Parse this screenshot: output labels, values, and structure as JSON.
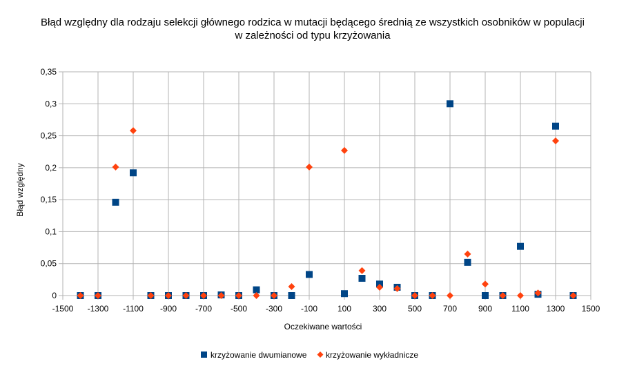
{
  "chart_data": {
    "type": "scatter",
    "title_lines": [
      "Błąd względny dla  rodzaju selekcji głównego rodzica w mutacji będącego średnią ze wszystkich osobników w populacji",
      "w zależności od typu krzyżowania"
    ],
    "xlabel": "Oczekiwane wartości",
    "ylabel": "Błąd względny",
    "xlim": [
      -1500,
      1500
    ],
    "ylim": [
      0,
      0.35
    ],
    "x_ticks": [
      -1500,
      -1300,
      -1100,
      -900,
      -700,
      -500,
      -300,
      -100,
      100,
      300,
      500,
      700,
      900,
      1100,
      1300,
      1500
    ],
    "x_tick_labels": [
      "-1500",
      "-1300",
      "-1100",
      "-900",
      "-700",
      "-500",
      "-300",
      "-100",
      "100",
      "300",
      "500",
      "700",
      "900",
      "1100",
      "1300",
      "1500"
    ],
    "y_ticks": [
      0,
      0.05,
      0.1,
      0.15,
      0.2,
      0.25,
      0.3,
      0.35
    ],
    "y_tick_labels": [
      "0",
      "0,05",
      "0,1",
      "0,15",
      "0,2",
      "0,25",
      "0,3",
      "0,35"
    ],
    "grid": true,
    "legend_position": "bottom",
    "series": [
      {
        "name": "krzyżowanie dwumianowe",
        "marker": "square",
        "color": "#004586",
        "points": [
          [
            -1400,
            0
          ],
          [
            -1300,
            0
          ],
          [
            -1200,
            0.146
          ],
          [
            -1100,
            0.192
          ],
          [
            -1000,
            0
          ],
          [
            -900,
            0
          ],
          [
            -800,
            0
          ],
          [
            -700,
            0
          ],
          [
            -600,
            0.001
          ],
          [
            -500,
            0
          ],
          [
            -400,
            0.009
          ],
          [
            -300,
            0
          ],
          [
            -200,
            0
          ],
          [
            -100,
            0.033
          ],
          [
            100,
            0.003
          ],
          [
            200,
            0.027
          ],
          [
            300,
            0.018
          ],
          [
            400,
            0.013
          ],
          [
            500,
            0
          ],
          [
            600,
            0
          ],
          [
            700,
            0.3
          ],
          [
            800,
            0.052
          ],
          [
            900,
            0
          ],
          [
            1000,
            0
          ],
          [
            1100,
            0.077
          ],
          [
            1200,
            0.002
          ],
          [
            1300,
            0.265
          ],
          [
            1400,
            0
          ]
        ]
      },
      {
        "name": "krzyżowanie wykładnicze",
        "marker": "diamond",
        "color": "#ff420e",
        "points": [
          [
            -1400,
            0
          ],
          [
            -1300,
            0
          ],
          [
            -1200,
            0.201
          ],
          [
            -1100,
            0.258
          ],
          [
            -1000,
            0
          ],
          [
            -900,
            0
          ],
          [
            -800,
            0
          ],
          [
            -700,
            0
          ],
          [
            -600,
            0
          ],
          [
            -500,
            0
          ],
          [
            -400,
            0
          ],
          [
            -300,
            0
          ],
          [
            -200,
            0.014
          ],
          [
            -100,
            0.201
          ],
          [
            100,
            0.227
          ],
          [
            200,
            0.039
          ],
          [
            300,
            0.013
          ],
          [
            400,
            0.011
          ],
          [
            500,
            0
          ],
          [
            600,
            0
          ],
          [
            700,
            0
          ],
          [
            800,
            0.065
          ],
          [
            900,
            0.018
          ],
          [
            1000,
            0
          ],
          [
            1100,
            0
          ],
          [
            1200,
            0.004
          ],
          [
            1300,
            0.242
          ],
          [
            1400,
            0
          ]
        ]
      }
    ]
  }
}
